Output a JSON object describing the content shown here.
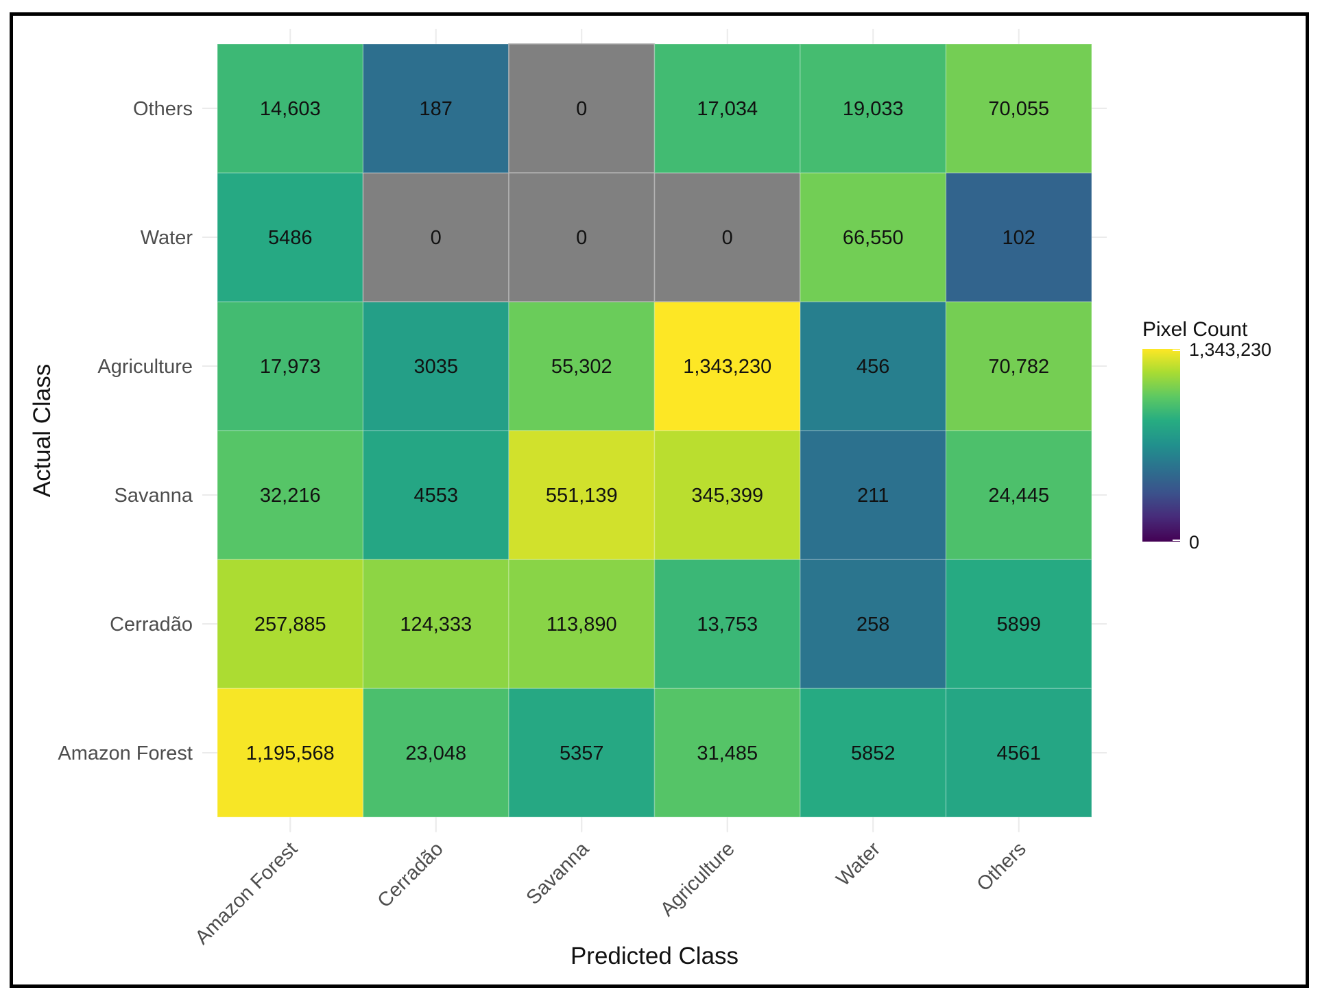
{
  "chart_data": {
    "type": "heatmap",
    "title": "",
    "xlabel": "Predicted Class",
    "ylabel": "Actual Class",
    "x_categories": [
      "Amazon Forest",
      "Cerradão",
      "Savanna",
      "Agriculture",
      "Water",
      "Others"
    ],
    "y_categories": [
      "Amazon Forest",
      "Cerradão",
      "Savanna",
      "Agriculture",
      "Water",
      "Others"
    ],
    "values": [
      [
        1195568,
        23048,
        5357,
        31485,
        5852,
        4561
      ],
      [
        257885,
        124333,
        113890,
        13753,
        258,
        5899
      ],
      [
        32216,
        4553,
        551139,
        345399,
        211,
        24445
      ],
      [
        17973,
        3035,
        55302,
        1343230,
        456,
        70782
      ],
      [
        5486,
        0,
        0,
        0,
        66550,
        102
      ],
      [
        14603,
        187,
        0,
        17034,
        19033,
        70055
      ]
    ],
    "cell_labels": [
      [
        "1,195,568",
        "23,048",
        "5357",
        "31,485",
        "5852",
        "4561"
      ],
      [
        "257,885",
        "124,333",
        "113,890",
        "13,753",
        "258",
        "5899"
      ],
      [
        "32,216",
        "4553",
        "551,139",
        "345,399",
        "211",
        "24,445"
      ],
      [
        "17,973",
        "3035",
        "55,302",
        "1,343,230",
        "456",
        "70,782"
      ],
      [
        "5486",
        "0",
        "0",
        "0",
        "66,550",
        "102"
      ],
      [
        "14,603",
        "187",
        "0",
        "17,034",
        "19,033",
        "70,055"
      ]
    ],
    "zero_color": "#808080",
    "color_scale": "viridis",
    "legend": {
      "title": "Pixel Count",
      "min": 0,
      "max": 1343230,
      "min_label": "0",
      "max_label": "1,343,230",
      "placement": "right"
    },
    "grid": true
  }
}
